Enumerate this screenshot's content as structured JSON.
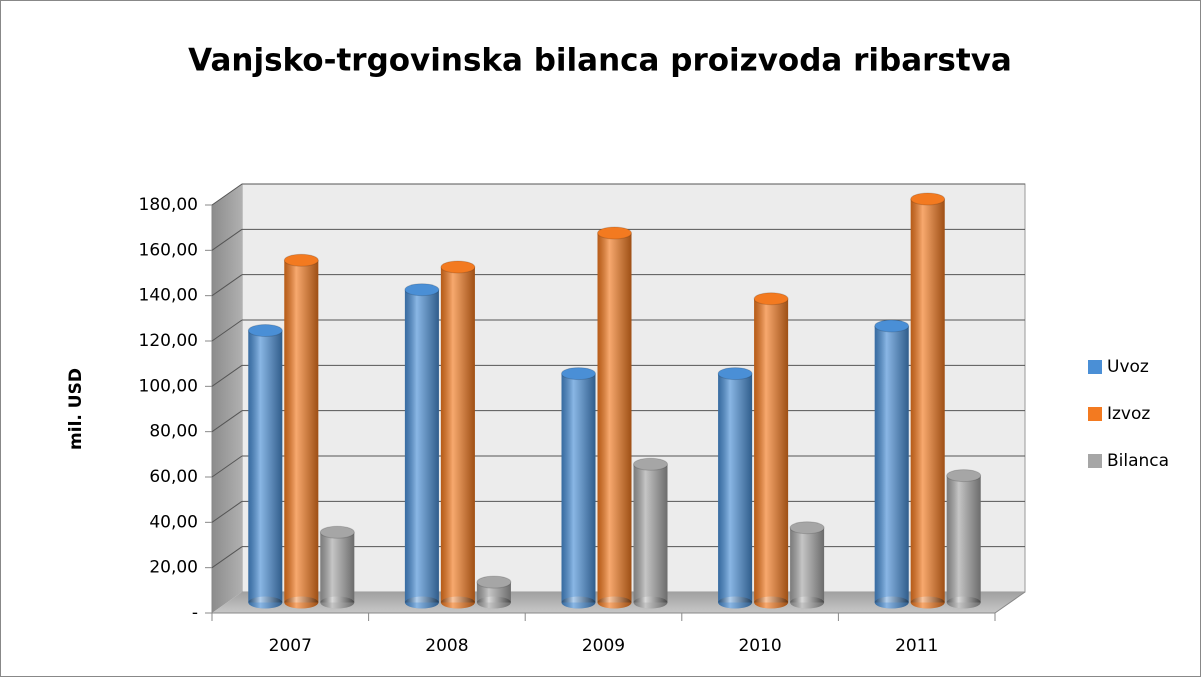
{
  "chart_data": {
    "type": "bar3d",
    "title": "Vanjsko-trgovinska bilanca proizvoda ribarstva",
    "y_label": "mil. USD",
    "categories": [
      "2007",
      "2008",
      "2009",
      "2010",
      "2011"
    ],
    "series": [
      {
        "name": "Uvoz",
        "color": "#4a8fd6",
        "values": [
          120,
          138,
          101,
          101,
          122
        ]
      },
      {
        "name": "Izvoz",
        "color": "#f37a20",
        "values": [
          151,
          148,
          163,
          134,
          178
        ]
      },
      {
        "name": "Bilanca",
        "color": "#a6a6a6",
        "values": [
          31,
          9,
          61,
          33,
          56
        ]
      }
    ],
    "ylim": [
      0,
      180
    ],
    "yticks": [
      {
        "value": 0,
        "label": "-"
      },
      {
        "value": 20,
        "label": "20,00"
      },
      {
        "value": 40,
        "label": "40,00"
      },
      {
        "value": 60,
        "label": "60,00"
      },
      {
        "value": 80,
        "label": "80,00"
      },
      {
        "value": 100,
        "label": "100,00"
      },
      {
        "value": 120,
        "label": "120,00"
      },
      {
        "value": 140,
        "label": "140,00"
      },
      {
        "value": 160,
        "label": "160,00"
      },
      {
        "value": 180,
        "label": "180,00"
      }
    ],
    "grid": true,
    "legend": "right"
  }
}
